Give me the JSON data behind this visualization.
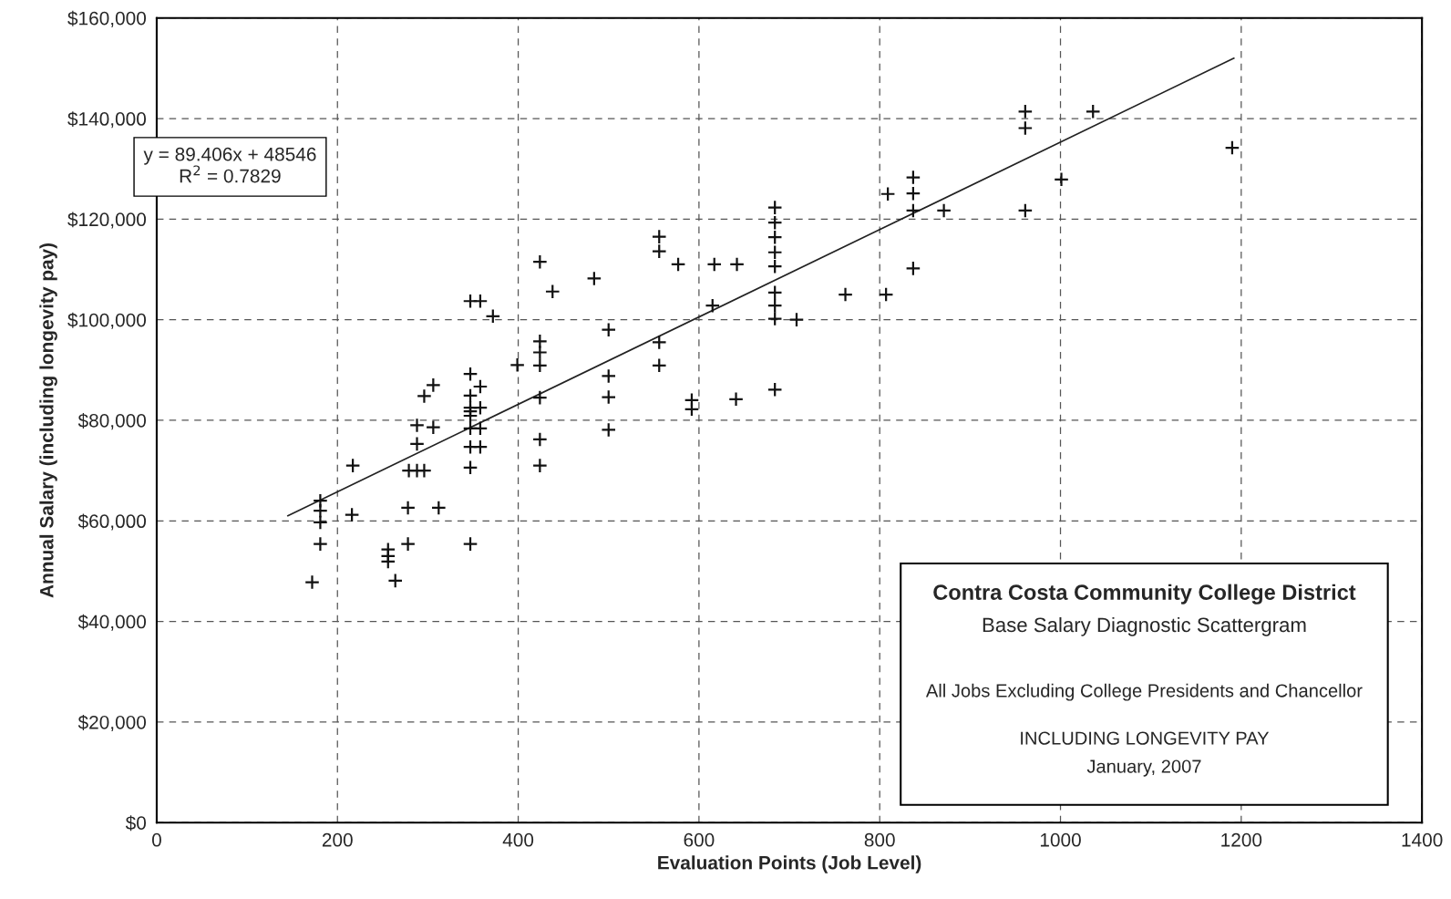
{
  "chart_data": {
    "type": "scatter",
    "title": "Contra Costa Community College District",
    "subtitle": "Base Salary Diagnostic Scattergram",
    "xlabel": "Evaluation Points (Job Level)",
    "ylabel": "Annual Salary (including longevity pay)",
    "annotations": [
      "y = 89.406x + 48546",
      "R$^{2}$ = 0.7829",
      "All Jobs Excluding College Presidents and Chancellor",
      "INCLUDING LONGEVITY PAY",
      "January, 2007"
    ],
    "xlim": [
      0,
      1400
    ],
    "xticks": [
      0,
      200,
      400,
      600,
      800,
      1000,
      1200,
      1400
    ],
    "ylim": [
      0,
      160000
    ],
    "yticks": [
      {
        "value": 0,
        "label": "$0"
      },
      {
        "value": 20000,
        "label": "$20,000"
      },
      {
        "value": 40000,
        "label": "$40,000"
      },
      {
        "value": 60000,
        "label": "$60,000"
      },
      {
        "value": 80000,
        "label": "$80,000"
      },
      {
        "value": 100000,
        "label": "$100,000"
      },
      {
        "value": 120000,
        "label": "$120,000"
      },
      {
        "value": 140000,
        "label": "$140,000"
      },
      {
        "value": 160000,
        "label": "$160,000"
      }
    ],
    "grid": true,
    "legend": false,
    "series": [
      {
        "marker": "cross",
        "color": "#111111",
        "x": [
          172,
          181,
          181,
          181,
          181,
          216,
          217,
          256,
          256,
          256,
          264,
          278,
          278,
          279,
          288,
          296,
          288,
          288,
          296,
          306,
          306,
          312,
          347,
          347,
          347,
          347,
          347,
          347,
          347,
          347,
          347,
          358,
          358,
          358,
          358,
          347,
          358,
          372,
          399,
          424,
          424,
          424,
          424,
          424,
          424,
          424,
          438,
          484,
          500,
          500,
          500,
          500,
          556,
          556,
          556,
          556,
          577,
          592,
          592,
          617,
          615,
          642,
          641,
          684,
          684,
          684,
          684,
          684,
          684,
          684,
          684,
          684,
          708,
          762,
          807,
          809,
          837,
          837,
          837,
          837,
          871,
          961,
          961,
          961,
          1001,
          1036,
          1190
        ],
        "values": [
          47800,
          55400,
          59700,
          62000,
          64000,
          61200,
          71000,
          54300,
          53000,
          51900,
          48100,
          55400,
          62600,
          70000,
          70000,
          70000,
          75300,
          79000,
          84800,
          87000,
          78600,
          62600,
          89200,
          84900,
          82500,
          81800,
          80900,
          78400,
          74700,
          70600,
          55400,
          86700,
          82500,
          78400,
          74700,
          103700,
          103700,
          100700,
          91000,
          111500,
          95700,
          93500,
          90900,
          84500,
          76200,
          71000,
          105600,
          108200,
          98000,
          88800,
          84600,
          78100,
          116500,
          113600,
          95500,
          90900,
          111000,
          84000,
          82200,
          111000,
          102800,
          111000,
          84200,
          122300,
          119300,
          116400,
          113400,
          110600,
          105400,
          102800,
          100200,
          86100,
          100000,
          105000,
          105000,
          125000,
          128300,
          125100,
          121700,
          110200,
          121700,
          141400,
          138100,
          121700,
          127900,
          141400,
          134200
        ]
      },
      {
        "type": "line",
        "color": "#222222",
        "line_style": "solid",
        "x": [
          145,
          1192
        ],
        "values": [
          61000,
          152000
        ]
      }
    ]
  }
}
